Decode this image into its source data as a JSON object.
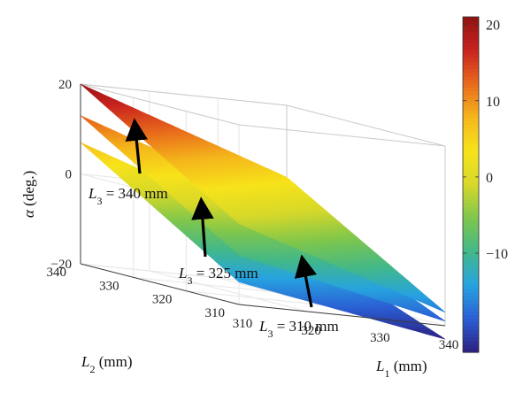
{
  "chart_data": {
    "type": "surface",
    "title": "",
    "axes": {
      "x": {
        "label_main": "L",
        "label_sub": "1",
        "label_unit": " (mm)",
        "range": [
          310,
          340
        ],
        "ticks": [
          "310",
          "320",
          "330",
          "340"
        ]
      },
      "y": {
        "label_main": "L",
        "label_sub": "2",
        "label_unit": " (mm)",
        "range": [
          310,
          340
        ],
        "ticks": [
          "310",
          "320",
          "330",
          "340"
        ]
      },
      "z": {
        "label_main": "α",
        "label_unit": " (deg.)",
        "range": [
          -20,
          20
        ],
        "ticks": [
          "−20",
          "0",
          "20"
        ]
      }
    },
    "colorbar": {
      "range": [
        -23,
        21
      ],
      "ticks": [
        "20",
        "10",
        "0",
        "−10"
      ],
      "tick_values": [
        20,
        10,
        0,
        -10
      ],
      "colormap": "parula-jet",
      "colors": [
        "#2c1f80",
        "#2b5fd4",
        "#27a3e0",
        "#43b889",
        "#7ec64d",
        "#d7d82a",
        "#f7e31b",
        "#f5b61c",
        "#e86a1c",
        "#c8231f",
        "#8e1212"
      ]
    },
    "series": [
      {
        "annotation": {
          "pre": "L",
          "sub": "3",
          "post": " = 340 mm"
        },
        "corners": {
          "L1_310_L2_340": 20,
          "L1_340_L2_340": 4,
          "L1_310_L2_310": -2,
          "L1_340_L2_310": -17
        }
      },
      {
        "annotation": {
          "pre": "L",
          "sub": "3",
          "post": " = 325 mm"
        },
        "corners": {
          "L1_310_L2_340": 13,
          "L1_340_L2_340": -3,
          "L1_310_L2_310": -9,
          "L1_340_L2_310": -19
        }
      },
      {
        "annotation": {
          "pre": "L",
          "sub": "3",
          "post": " = 310 mm"
        },
        "corners": {
          "L1_310_L2_340": 7,
          "L1_340_L2_340": -9,
          "L1_310_L2_310": -15,
          "L1_340_L2_310": -23
        }
      }
    ]
  }
}
